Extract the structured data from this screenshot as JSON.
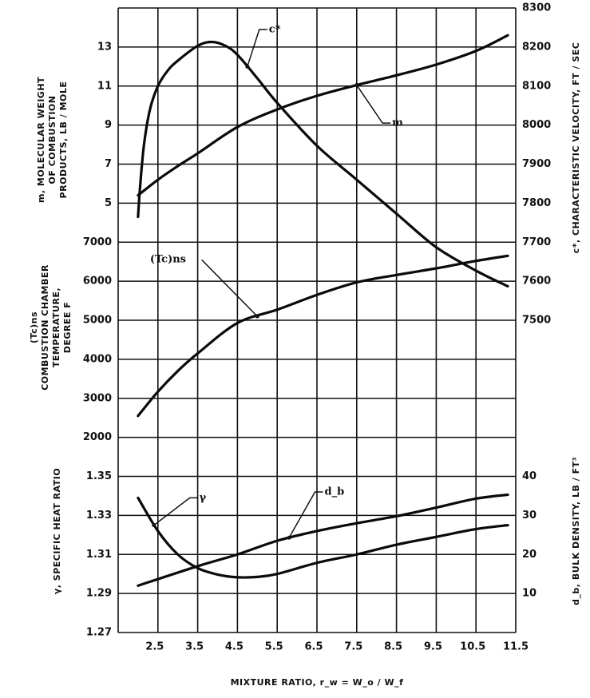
{
  "chart_data": {
    "type": "line",
    "title": "",
    "xlabel": "MIXTURE RATIO, r_w = W_o / W_f",
    "xlim": [
      1.5,
      11.5
    ],
    "x_ticks": [
      "2.5",
      "3.5",
      "4.5",
      "5.5",
      "6.5",
      "7.5",
      "8.5",
      "9.5",
      "10.5",
      "11.5"
    ],
    "grid": true,
    "axes": {
      "left_molecular_weight": {
        "label_lines": [
          "m, MOLECULAR WEIGHT",
          "OF COMBUSTION",
          "PRODUCTS, LB / MOLE"
        ],
        "ticks": [
          "13",
          "11",
          "9",
          "7",
          "5"
        ],
        "range": [
          5,
          15
        ]
      },
      "left_temperature": {
        "label_lines": [
          "(Tc)ns",
          "COMBUSTION CHAMBER",
          "TEMPERATURE,",
          "DEGREE F"
        ],
        "ticks": [
          "7000",
          "6000",
          "5000",
          "4000",
          "3000",
          "2000"
        ],
        "range": [
          2000,
          7000
        ]
      },
      "left_gamma": {
        "label_lines": [
          "γ, SPECIFIC HEAT RATIO"
        ],
        "ticks": [
          "1.35",
          "1.33",
          "1.31",
          "1.29",
          "1.27"
        ],
        "range": [
          1.27,
          1.35
        ]
      },
      "right_cstar": {
        "label_lines": [
          "c*, CHARACTERISTIC VELOCITY, FT / SEC"
        ],
        "ticks": [
          "8300",
          "8200",
          "8100",
          "8000",
          "7900",
          "7800",
          "7700",
          "7600",
          "7500"
        ],
        "range": [
          7500,
          8300
        ]
      },
      "right_bulk_density": {
        "label_lines": [
          "d_b, BULK DENSITY, LB / FT³"
        ],
        "ticks": [
          "40",
          "30",
          "20",
          "10"
        ],
        "range": [
          0,
          40
        ]
      }
    },
    "series": [
      {
        "name": "m",
        "label": "m",
        "axis": "left_molecular_weight",
        "x": [
          2.0,
          2.5,
          3.0,
          3.5,
          4.5,
          5.5,
          6.5,
          7.5,
          8.5,
          9.5,
          10.5,
          11.3
        ],
        "y": [
          5.4,
          6.2,
          6.9,
          7.55,
          8.9,
          9.8,
          10.5,
          11.05,
          11.55,
          12.1,
          12.8,
          13.6
        ]
      },
      {
        "name": "c*",
        "label": "c*",
        "axis": "right_cstar",
        "x": [
          2.0,
          2.05,
          2.15,
          2.3,
          2.5,
          2.75,
          3.0,
          3.5,
          3.85,
          4.2,
          4.5,
          5.0,
          5.5,
          6.5,
          7.5,
          8.5,
          9.5,
          10.5,
          11.3
        ],
        "y": [
          7765,
          7840,
          7950,
          8040,
          8100,
          8140,
          8165,
          8203,
          8213,
          8203,
          8180,
          8120,
          8057,
          7947,
          7860,
          7773,
          7687,
          7627,
          7587
        ]
      },
      {
        "name": "(Tc)ns",
        "label": "(Tc)ns",
        "axis": "left_temperature",
        "x": [
          2.0,
          2.5,
          3.0,
          3.5,
          4.5,
          5.5,
          6.5,
          7.5,
          8.5,
          9.5,
          10.5,
          11.3
        ],
        "y": [
          2550,
          3170,
          3700,
          4150,
          4930,
          5270,
          5650,
          5970,
          6160,
          6330,
          6520,
          6650
        ]
      },
      {
        "name": "γ",
        "label": "γ",
        "axis": "left_gamma",
        "x": [
          2.0,
          2.5,
          3.0,
          3.5,
          4.0,
          4.5,
          5.0,
          5.5,
          6.5,
          7.5,
          8.5,
          9.5,
          10.5,
          11.3
        ],
        "y": [
          1.339,
          1.322,
          1.31,
          1.303,
          1.2997,
          1.2983,
          1.2985,
          1.3,
          1.3057,
          1.31,
          1.315,
          1.319,
          1.323,
          1.325
        ]
      },
      {
        "name": "d_b",
        "label": "d_b",
        "axis": "right_bulk_density",
        "x": [
          2.0,
          3.5,
          4.5,
          5.5,
          6.5,
          7.5,
          8.5,
          9.5,
          10.5,
          11.3
        ],
        "y": [
          12,
          17,
          20,
          23.5,
          26,
          28,
          29.8,
          32,
          34.3,
          35.3
        ]
      }
    ]
  }
}
